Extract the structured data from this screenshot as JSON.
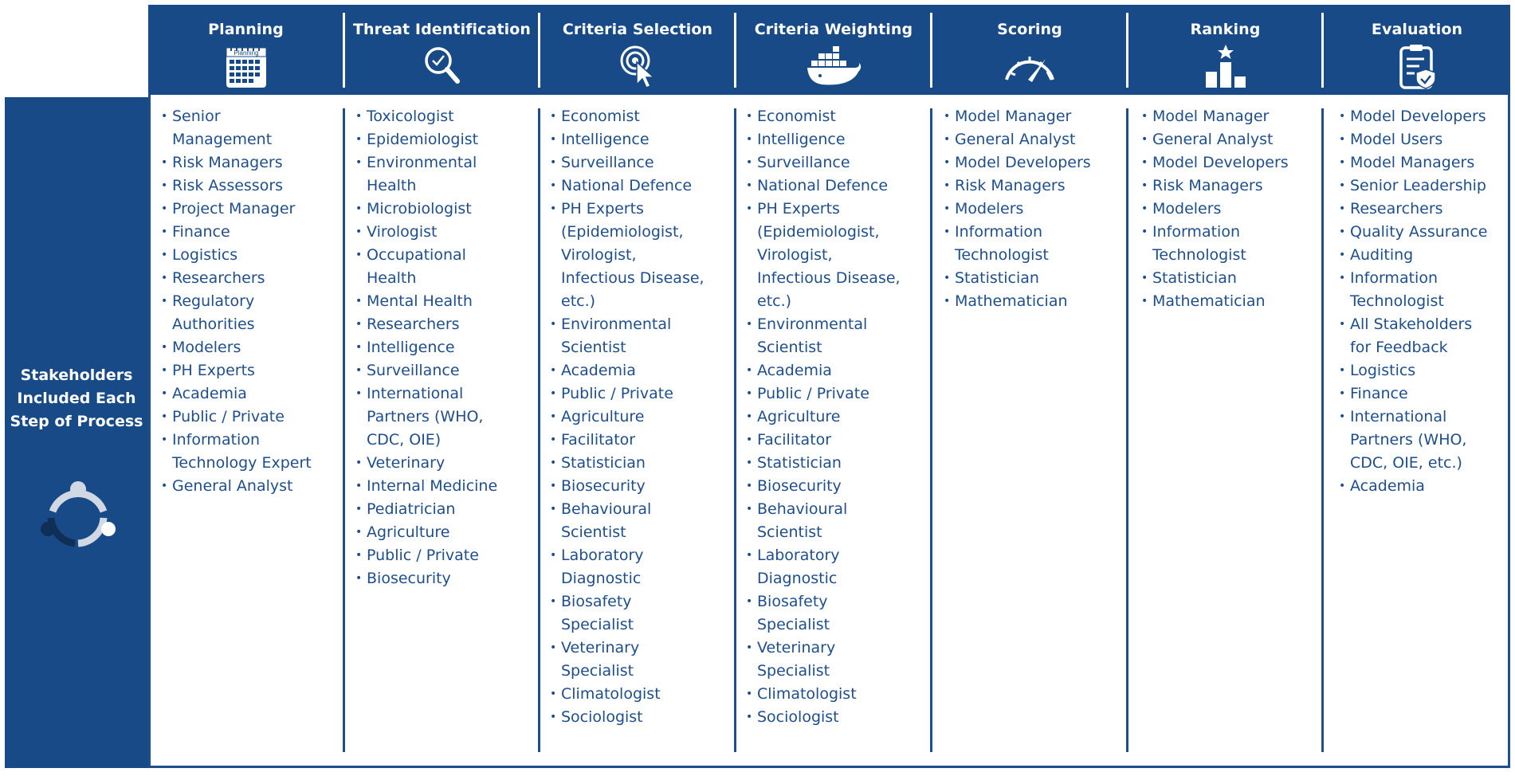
{
  "side": {
    "lines": [
      "Stakeholders",
      "Included Each",
      "Step of Process"
    ],
    "icon": "people-circle-icon"
  },
  "steps": [
    {
      "title": "Planning",
      "icon": "calendar-icon",
      "icon_label": "Planning"
    },
    {
      "title": "Threat Identification",
      "icon": "magnifier-check-icon"
    },
    {
      "title": "Criteria Selection",
      "icon": "target-cursor-icon"
    },
    {
      "title": "Criteria Weighting",
      "icon": "container-ship-icon"
    },
    {
      "title": "Scoring",
      "icon": "speedometer-icon"
    },
    {
      "title": "Ranking",
      "icon": "podium-star-icon"
    },
    {
      "title": "Evaluation",
      "icon": "clipboard-shield-icon"
    }
  ],
  "columns": [
    [
      "Senior\nManagement",
      "Risk Managers",
      "Risk Assessors",
      "Project Manager",
      "Finance",
      "Logistics",
      "Researchers",
      "Regulatory\nAuthorities",
      "Modelers",
      "PH Experts",
      "Academia",
      "Public / Private",
      "Information\nTechnology Expert",
      "General Analyst"
    ],
    [
      "Toxicologist",
      "Epidemiologist",
      "Environmental\nHealth",
      "Microbiologist",
      "Virologist",
      "Occupational\nHealth",
      "Mental Health",
      "Researchers",
      "Intelligence",
      "Surveillance",
      "International\nPartners (WHO,\nCDC, OIE)",
      "Veterinary",
      "Internal Medicine",
      "Pediatrician",
      "Agriculture",
      "Public / Private",
      "Biosecurity"
    ],
    [
      "Economist",
      "Intelligence",
      "Surveillance",
      "National Defence",
      "PH Experts\n(Epidemiologist,\nVirologist,\nInfectious Disease,\netc.)",
      "Environmental\nScientist",
      "Academia",
      "Public / Private",
      "Agriculture",
      "Facilitator",
      "Statistician",
      "Biosecurity",
      "Behavioural\nScientist",
      "Laboratory\nDiagnostic",
      "Biosafety\nSpecialist",
      "Veterinary\nSpecialist",
      "Climatologist",
      "Sociologist"
    ],
    [
      "Economist",
      "Intelligence",
      "Surveillance",
      "National Defence",
      "PH Experts\n(Epidemiologist,\nVirologist,\nInfectious Disease,\netc.)",
      "Environmental\nScientist",
      "Academia",
      "Public / Private",
      "Agriculture",
      "Facilitator",
      "Statistician",
      "Biosecurity",
      "Behavioural\nScientist",
      "Laboratory\nDiagnostic",
      "Biosafety\nSpecialist",
      "Veterinary\nSpecialist",
      "Climatologist",
      "Sociologist"
    ],
    [
      "Model Manager",
      "General Analyst",
      "Model Developers",
      "Risk Managers",
      "Modelers",
      "Information\nTechnologist",
      "Statistician",
      "Mathematician"
    ],
    [
      "Model Manager",
      "General Analyst",
      "Model Developers",
      "Risk Managers",
      "Modelers",
      "Information\nTechnologist",
      "Statistician",
      "Mathematician"
    ],
    [
      "Model Developers",
      "Model Users",
      "Model Managers",
      "Senior Leadership",
      "Researchers",
      "Quality Assurance",
      "Auditing",
      "Information\nTechnologist",
      "All Stakeholders\nfor Feedback",
      "Logistics",
      "Finance",
      "International\nPartners (WHO,\nCDC, OIE, etc.)",
      "Academia"
    ]
  ],
  "colors": {
    "header_bg": "#174a87",
    "text": "#1f4e8c",
    "border": "#1f4e8c"
  }
}
